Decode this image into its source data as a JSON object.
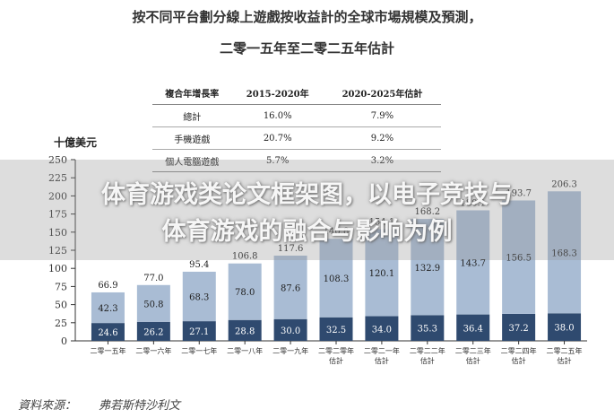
{
  "chart_data": {
    "type": "bar",
    "stacked": true,
    "title": "按不同平台劃分線上遊戲按收益計的全球市場規模及預測，",
    "subtitle": "二零一五年至二零二五年估計",
    "ylabel": "十億美元",
    "ylim": [
      0,
      250
    ],
    "yticks": [
      "0",
      "25",
      "50",
      "75",
      "100",
      "125",
      "150",
      "175",
      "200",
      "225",
      "250"
    ],
    "categories": [
      [
        "二零一五年"
      ],
      [
        "二零一六年"
      ],
      [
        "二零一七年"
      ],
      [
        "二零一八年"
      ],
      [
        "二零一九年"
      ],
      [
        "二零二零年",
        "估計"
      ],
      [
        "二零二一年",
        "估計"
      ],
      [
        "二零二二年",
        "估計"
      ],
      [
        "二零二三年",
        "估計"
      ],
      [
        "二零二四年",
        "估計"
      ],
      [
        "二零二五年",
        "估計"
      ]
    ],
    "series": [
      {
        "values": [
          24.6,
          26.2,
          27.1,
          28.8,
          30.0,
          32.5,
          34.0,
          35.3,
          36.4,
          37.2,
          38.0
        ],
        "color": "#2f4a6f"
      },
      {
        "values": [
          42.3,
          50.8,
          68.3,
          78.0,
          87.6,
          108.3,
          120.1,
          132.9,
          143.7,
          156.5,
          168.3
        ],
        "color": "#a9bcd4"
      }
    ],
    "totals": [
      66.9,
      77.0,
      95.4,
      106.8,
      117.6,
      140.8,
      154.1,
      168.2,
      180.1,
      193.7,
      206.3
    ],
    "grid": false,
    "legend": "none"
  },
  "growth_table": {
    "headers": [
      "複合年增長率",
      "2015-2020年",
      "2020-2025年估計"
    ],
    "rows": [
      [
        "總計",
        "16.0%",
        "7.9%"
      ],
      [
        "手機遊戲",
        "20.7%",
        "9.2%"
      ],
      [
        "個人電腦遊戲",
        "5.7%",
        "3.2%"
      ]
    ]
  },
  "source": {
    "label": "資料來源：",
    "value": "弗若斯特沙利文"
  },
  "banner": {
    "line1": "体育游戏类论文框架图，以电子竞技与",
    "line2": "体育游戏的融合与影响为例"
  },
  "colors": {
    "bottom_bar": "#2f4a6f",
    "top_bar": "#a9bcd4",
    "axis": "#333333",
    "banner_overlay": "#969696"
  }
}
